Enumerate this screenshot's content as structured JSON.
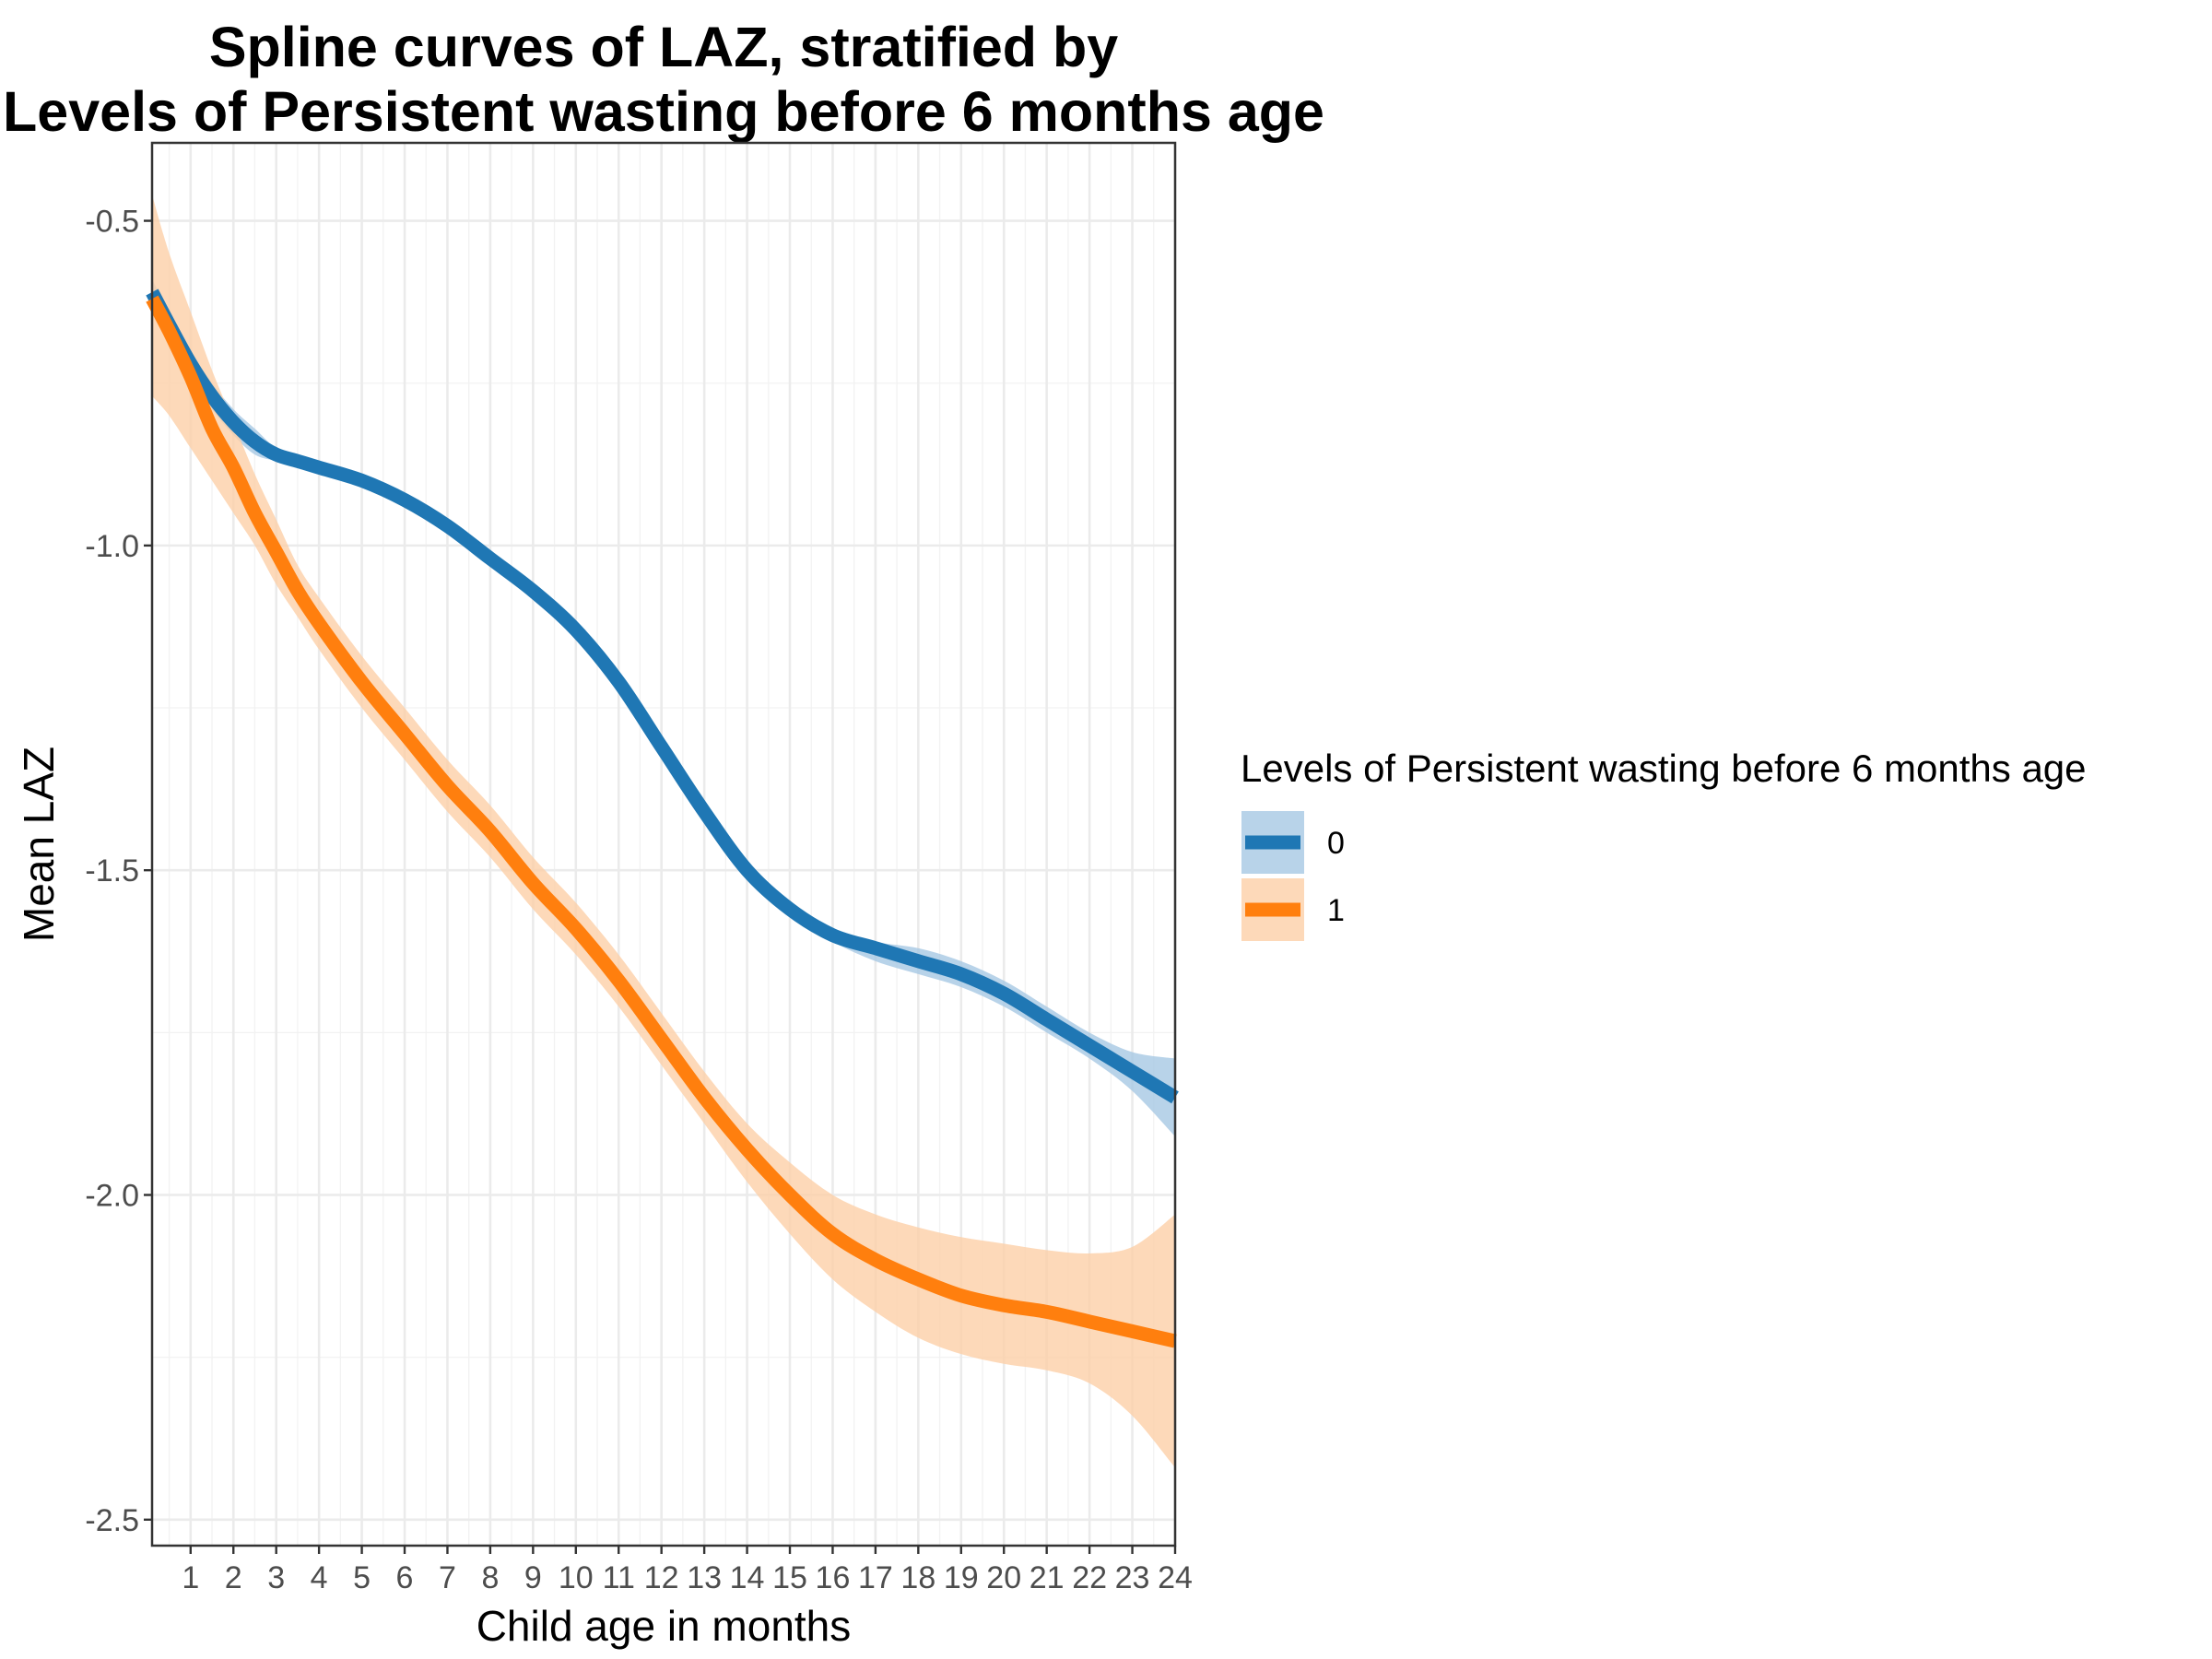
{
  "chart_data": {
    "type": "line",
    "title_lines": [
      "Spline curves of LAZ, stratified by",
      "Levels of Persistent wasting before 6 months age"
    ],
    "xlabel": "Child age in months",
    "ylabel": "Mean LAZ",
    "xlim": [
      0.1,
      24
    ],
    "ylim": [
      -2.54,
      -0.38
    ],
    "x_ticks": [
      1,
      2,
      3,
      4,
      5,
      6,
      7,
      8,
      9,
      10,
      11,
      12,
      13,
      14,
      15,
      16,
      17,
      18,
      19,
      20,
      21,
      22,
      23,
      24
    ],
    "y_ticks": [
      -2.5,
      -2.0,
      -1.5,
      -1.0,
      -0.5
    ],
    "y_tick_labels": [
      "-2.5",
      "-2.0",
      "-1.5",
      "-1.0",
      "-0.5"
    ],
    "grid": true,
    "legend": {
      "title": "Levels of Persistent wasting before 6 months age",
      "position": "right"
    },
    "series": [
      {
        "name": "0",
        "color": "#1f77b4",
        "band_color": "#a6c8e4",
        "x": [
          0.1,
          0.5,
          1,
          1.5,
          2,
          2.5,
          3,
          3.5,
          4,
          5,
          6,
          7,
          8,
          9,
          10,
          11,
          12,
          13,
          14,
          15,
          16,
          17,
          18,
          19,
          20,
          21,
          22,
          23,
          24
        ],
        "y": [
          -0.61,
          -0.66,
          -0.72,
          -0.77,
          -0.81,
          -0.84,
          -0.86,
          -0.87,
          -0.88,
          -0.9,
          -0.93,
          -0.97,
          -1.02,
          -1.07,
          -1.13,
          -1.21,
          -1.31,
          -1.41,
          -1.5,
          -1.56,
          -1.6,
          -1.62,
          -1.64,
          -1.66,
          -1.69,
          -1.73,
          -1.77,
          -1.81,
          -1.85
        ],
        "lower": [
          -0.64,
          -0.68,
          -0.74,
          -0.79,
          -0.83,
          -0.86,
          -0.87,
          -0.88,
          -0.89,
          -0.91,
          -0.94,
          -0.98,
          -1.03,
          -1.08,
          -1.14,
          -1.22,
          -1.32,
          -1.42,
          -1.51,
          -1.57,
          -1.61,
          -1.64,
          -1.66,
          -1.68,
          -1.71,
          -1.75,
          -1.79,
          -1.84,
          -1.91
        ],
        "upper": [
          -0.59,
          -0.64,
          -0.7,
          -0.75,
          -0.79,
          -0.82,
          -0.85,
          -0.86,
          -0.87,
          -0.89,
          -0.92,
          -0.96,
          -1.01,
          -1.06,
          -1.12,
          -1.2,
          -1.3,
          -1.4,
          -1.49,
          -1.55,
          -1.59,
          -1.61,
          -1.62,
          -1.64,
          -1.67,
          -1.71,
          -1.75,
          -1.78,
          -1.79
        ]
      },
      {
        "name": "1",
        "color": "#ff7f0e",
        "band_color": "#fdcfa8",
        "x": [
          0.1,
          0.5,
          1,
          1.5,
          2,
          2.5,
          3,
          3.5,
          4,
          5,
          6,
          7,
          8,
          9,
          10,
          11,
          12,
          13,
          14,
          15,
          16,
          17,
          18,
          19,
          20,
          21,
          22,
          23,
          24
        ],
        "y": [
          -0.62,
          -0.67,
          -0.74,
          -0.82,
          -0.88,
          -0.95,
          -1.01,
          -1.07,
          -1.12,
          -1.21,
          -1.29,
          -1.37,
          -1.44,
          -1.52,
          -1.59,
          -1.67,
          -1.76,
          -1.85,
          -1.93,
          -2.0,
          -2.06,
          -2.1,
          -2.13,
          -2.155,
          -2.17,
          -2.18,
          -2.195,
          -2.21,
          -2.225
        ],
        "lower": [
          -0.77,
          -0.8,
          -0.85,
          -0.9,
          -0.95,
          -1.0,
          -1.06,
          -1.11,
          -1.16,
          -1.25,
          -1.33,
          -1.41,
          -1.48,
          -1.56,
          -1.63,
          -1.71,
          -1.8,
          -1.89,
          -1.98,
          -2.06,
          -2.13,
          -2.18,
          -2.22,
          -2.245,
          -2.26,
          -2.27,
          -2.29,
          -2.34,
          -2.42
        ],
        "upper": [
          -0.46,
          -0.55,
          -0.64,
          -0.73,
          -0.81,
          -0.89,
          -0.96,
          -1.03,
          -1.08,
          -1.17,
          -1.25,
          -1.33,
          -1.4,
          -1.48,
          -1.55,
          -1.63,
          -1.72,
          -1.81,
          -1.89,
          -1.95,
          -2.0,
          -2.03,
          -2.05,
          -2.065,
          -2.075,
          -2.085,
          -2.09,
          -2.08,
          -2.03
        ]
      }
    ]
  }
}
